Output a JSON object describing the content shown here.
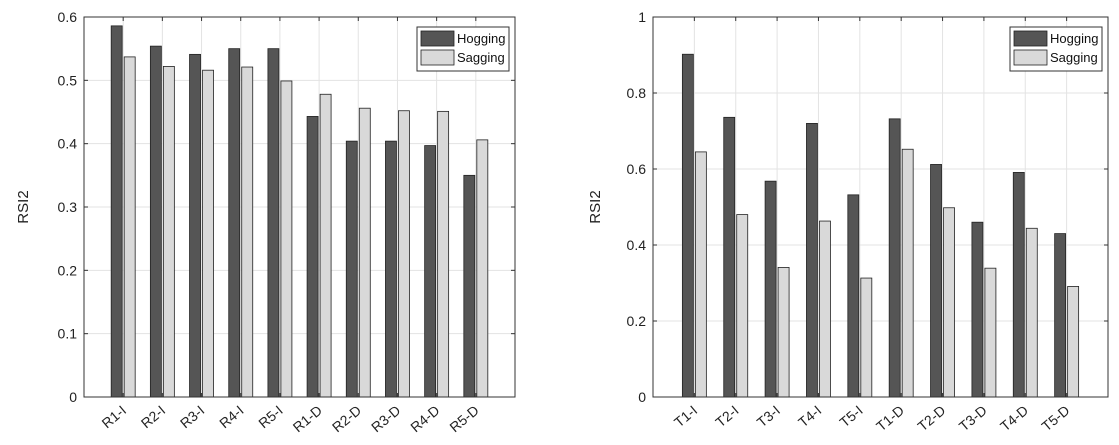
{
  "chart_data": [
    {
      "type": "bar",
      "title": "",
      "xlabel": "",
      "ylabel": "RSI2",
      "ylim": [
        0,
        0.6
      ],
      "yticks": [
        "0",
        "0.1",
        "0.2",
        "0.3",
        "0.4",
        "0.5",
        "0.6"
      ],
      "grid": true,
      "legend_position": "top-right",
      "categories": [
        "R1-I",
        "R2-I",
        "R3-I",
        "R4-I",
        "R5-I",
        "R1-D",
        "R2-D",
        "R3-D",
        "R4-D",
        "R5-D"
      ],
      "series": [
        {
          "name": "Hogging",
          "color": "#555555",
          "values": [
            0.586,
            0.554,
            0.541,
            0.55,
            0.55,
            0.443,
            0.404,
            0.404,
            0.397,
            0.35
          ]
        },
        {
          "name": "Sagging",
          "color": "#d9d9d9",
          "values": [
            0.537,
            0.522,
            0.516,
            0.521,
            0.499,
            0.478,
            0.456,
            0.452,
            0.451,
            0.406
          ]
        }
      ]
    },
    {
      "type": "bar",
      "title": "",
      "xlabel": "",
      "ylabel": "RSI2",
      "ylim": [
        0,
        1
      ],
      "yticks": [
        "0",
        "0.2",
        "0.4",
        "0.6",
        "0.8",
        "1"
      ],
      "grid": true,
      "legend_position": "top-right",
      "categories": [
        "T1-I",
        "T2-I",
        "T3-I",
        "T4-I",
        "T5-I",
        "T1-D",
        "T2-D",
        "T3-D",
        "T4-D",
        "T5-D"
      ],
      "series": [
        {
          "name": "Hogging",
          "color": "#555555",
          "values": [
            0.902,
            0.736,
            0.568,
            0.72,
            0.532,
            0.732,
            0.612,
            0.46,
            0.591,
            0.43
          ]
        },
        {
          "name": "Sagging",
          "color": "#d9d9d9",
          "values": [
            0.645,
            0.48,
            0.341,
            0.463,
            0.313,
            0.652,
            0.498,
            0.339,
            0.444,
            0.291
          ]
        }
      ]
    }
  ]
}
